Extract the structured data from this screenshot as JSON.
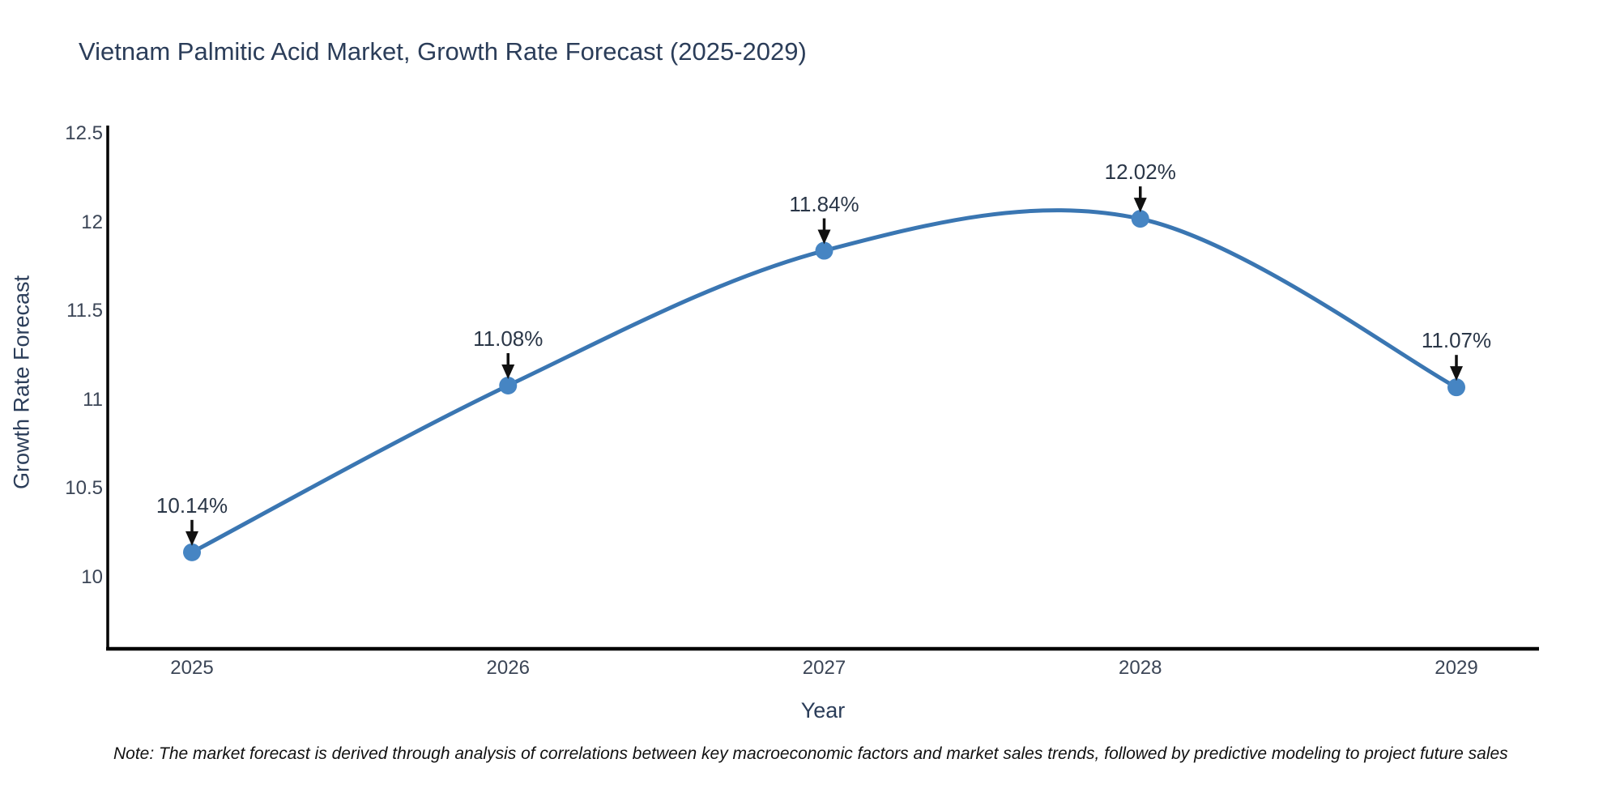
{
  "page": {
    "background": "#ffffff"
  },
  "chart_data": {
    "type": "line",
    "title": "Vietnam Palmitic Acid Market, Growth Rate Forecast (2025-2029)",
    "xlabel": "Year",
    "ylabel": "Growth Rate Forecast",
    "categories": [
      "2025",
      "2026",
      "2027",
      "2028",
      "2029"
    ],
    "values": [
      10.14,
      11.08,
      11.84,
      12.02,
      11.07
    ],
    "point_labels": [
      "10.14%",
      "11.08%",
      "11.84%",
      "12.02%",
      "11.07%"
    ],
    "ylim": [
      9.6,
      12.5
    ],
    "yticks": [
      10,
      10.5,
      11,
      11.5,
      12,
      12.5
    ],
    "ytick_labels": [
      "10",
      "10.5",
      "11",
      "11.5",
      "12",
      "12.5"
    ],
    "line_shape": "spline",
    "grid": false,
    "legend_position": "none",
    "annotation_style": "arrow-down-to-point",
    "colors": {
      "line": "#3a76b2",
      "marker": "#4685c3",
      "arrow": "#111111",
      "axis": "#000000",
      "title_text": "#2b3d59",
      "tick_text": "#3b4556"
    }
  },
  "note": {
    "text": "Note: The market forecast is derived through analysis of correlations between key macroeconomic factors and market sales trends, followed by predictive modeling to project future sales"
  }
}
